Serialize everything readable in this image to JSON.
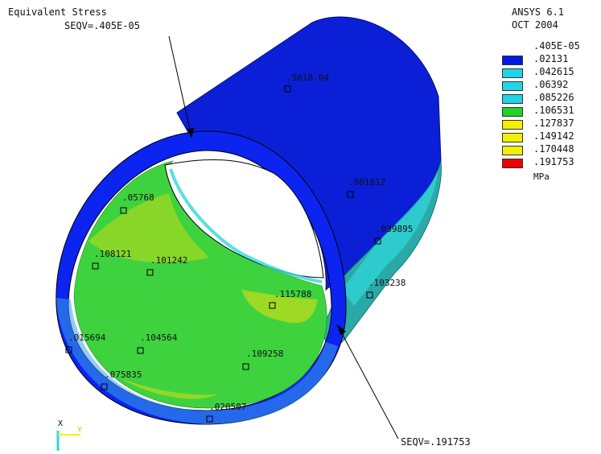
{
  "header": {
    "plot_title": "Equivalent Stress",
    "min_callout": "SEQV=.405E-05",
    "max_callout": "SEQV=.191753",
    "product": "ANSYS 6.1",
    "date": "OCT 2004"
  },
  "legend": {
    "levels": [
      {
        "label": ".405E-05",
        "color": null
      },
      {
        "label": ".02131",
        "color": "#0018e0"
      },
      {
        "label": ".042615",
        "color": "#1fd4e8"
      },
      {
        "label": ".06392",
        "color": "#1fd4e8"
      },
      {
        "label": ".085226",
        "color": "#1fd4e8"
      },
      {
        "label": ".106531",
        "color": "#22d222"
      },
      {
        "label": ".127837",
        "color": "#f0f000"
      },
      {
        "label": ".149142",
        "color": "#f0f000"
      },
      {
        "label": ".170448",
        "color": "#f0f000"
      },
      {
        "label": ".191753",
        "color": "#ee0000"
      }
    ],
    "unit": "MPa"
  },
  "markers": [
    {
      "id": "m1",
      "label": ".5618-04"
    },
    {
      "id": "m2",
      "label": ".001812"
    },
    {
      "id": "m3",
      "label": ".039895"
    },
    {
      "id": "m4",
      "label": ".103238"
    },
    {
      "id": "m5",
      "label": ".05768"
    },
    {
      "id": "m6",
      "label": ".108121"
    },
    {
      "id": "m7",
      "label": ".101242"
    },
    {
      "id": "m8",
      "label": ".115788"
    },
    {
      "id": "m9",
      "label": ".015694"
    },
    {
      "id": "m10",
      "label": ".104564"
    },
    {
      "id": "m11",
      "label": ".109258"
    },
    {
      "id": "m12",
      "label": ".075835"
    },
    {
      "id": "m13",
      "label": ".020507"
    }
  ],
  "triad": {
    "x_label": "X",
    "y_label": "Y"
  },
  "colors": {
    "outer_surface": "#0a1fd6",
    "rim": "#0b24f0",
    "inner_green": "#3fd23f",
    "inner_yellowgreen": "#a8d820",
    "cyan_band": "#2fd7d7",
    "teal_band": "#2aa9a9"
  }
}
